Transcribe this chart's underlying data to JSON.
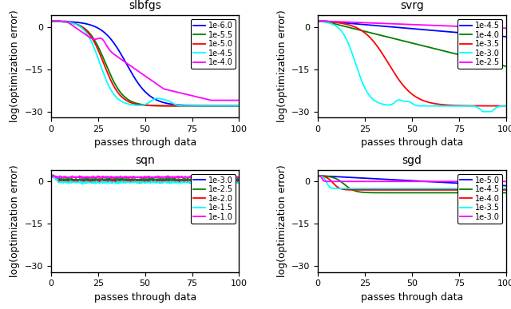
{
  "subplots": [
    {
      "title": "slbfgs",
      "xlabel": "passes through data",
      "ylabel": "log(optimization error)",
      "xlim": [
        0,
        100
      ],
      "ylim": [
        -32,
        4
      ],
      "yticks": [
        0,
        -15,
        -30
      ],
      "xticks": [
        0,
        25,
        50,
        75,
        100
      ],
      "legend_labels": [
        "1e-6.0",
        "1e-5.5",
        "1e-5.0",
        "1e-4.5",
        "1e-4.0"
      ],
      "legend_colors": [
        "blue",
        "green",
        "red",
        "cyan",
        "magenta"
      ]
    },
    {
      "title": "svrg",
      "xlabel": "passes through data",
      "ylabel": "log(optimization error)",
      "xlim": [
        0,
        100
      ],
      "ylim": [
        -32,
        4
      ],
      "yticks": [
        0,
        -15,
        -30
      ],
      "xticks": [
        0,
        25,
        50,
        75,
        100
      ],
      "legend_labels": [
        "1e-4.5",
        "1e-4.0",
        "1e-3.5",
        "1e-3.0",
        "1e-2.5"
      ],
      "legend_colors": [
        "blue",
        "green",
        "red",
        "cyan",
        "magenta"
      ]
    },
    {
      "title": "sqn",
      "xlabel": "passes through data",
      "ylabel": "log(optimization error)",
      "xlim": [
        0,
        100
      ],
      "ylim": [
        -32,
        4
      ],
      "yticks": [
        0,
        -15,
        -30
      ],
      "xticks": [
        0,
        25,
        50,
        75,
        100
      ],
      "legend_labels": [
        "1e-3.0",
        "1e-2.5",
        "1e-2.0",
        "1e-1.5",
        "1e-1.0"
      ],
      "legend_colors": [
        "blue",
        "green",
        "red",
        "cyan",
        "magenta"
      ]
    },
    {
      "title": "sgd",
      "xlabel": "passes through data",
      "ylabel": "log(optimization error)",
      "xlim": [
        0,
        100
      ],
      "ylim": [
        -32,
        4
      ],
      "yticks": [
        0,
        -15,
        -30
      ],
      "xticks": [
        0,
        25,
        50,
        75,
        100
      ],
      "legend_labels": [
        "1e-5.0",
        "1e-4.5",
        "1e-4.0",
        "1e-3.5",
        "1e-3.0"
      ],
      "legend_colors": [
        "blue",
        "green",
        "red",
        "cyan",
        "magenta"
      ]
    }
  ],
  "font_size": 9,
  "title_font_size": 10,
  "tick_font_size": 8,
  "legend_font_size": 7
}
